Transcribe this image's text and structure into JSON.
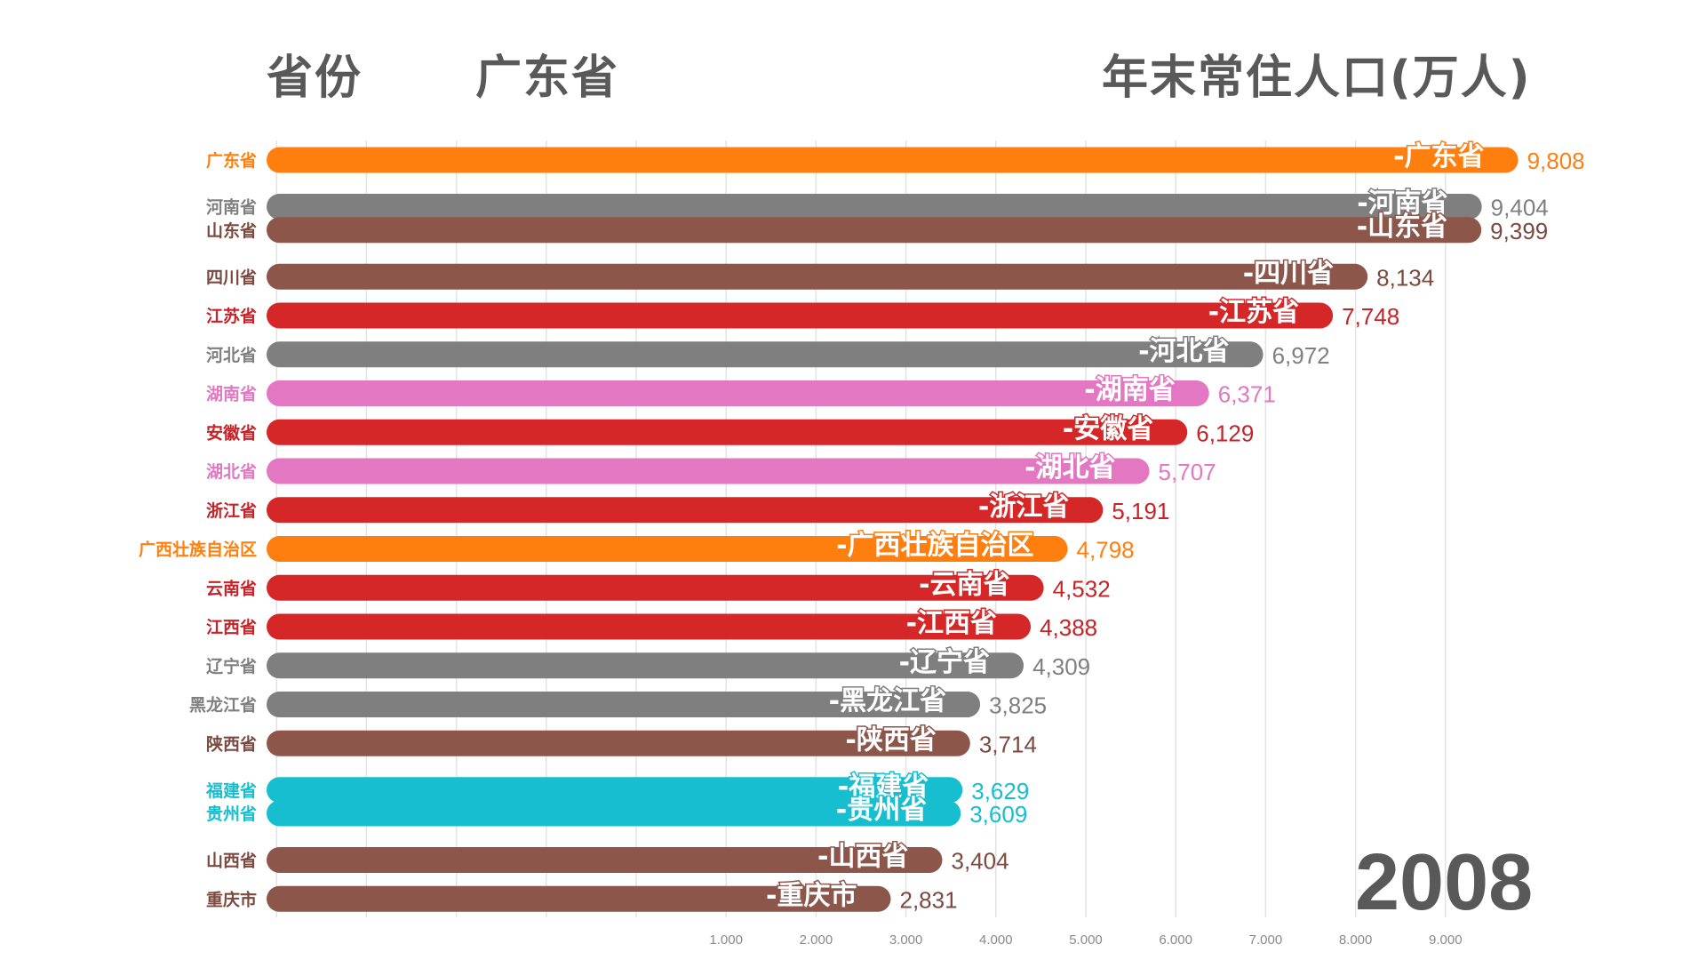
{
  "header": {
    "category_label": "省份",
    "leader_label": "广东省",
    "metric_label": "年末常住人口(万人)"
  },
  "year": "2008",
  "colors": {
    "orange": "#ff7f0e",
    "gray": "#7f7f7f",
    "brown": "#8c564b",
    "red": "#d62728",
    "pink": "#e377c2",
    "cyan": "#17becf",
    "title": "#595959",
    "grid": "#e3e3e3"
  },
  "chart_data": {
    "type": "bar",
    "orientation": "horizontal",
    "title": "年末常住人口(万人)",
    "xlabel": "",
    "ylabel": "省份",
    "year": "2008",
    "grid": true,
    "x_ticks": [
      1000,
      2000,
      3000,
      4000,
      5000,
      6000,
      7000,
      8000,
      9000
    ],
    "x_tick_labels": [
      "1.000",
      "2.000",
      "3.000",
      "4.000",
      "5.000",
      "6.000",
      "7.000",
      "8.000",
      "9.000"
    ],
    "x_grid_values": [
      -4000,
      -3000,
      -2000,
      -1000,
      0,
      1000,
      2000,
      3000,
      4000,
      5000,
      6000,
      7000,
      8000,
      9000
    ],
    "categories": [
      "广东省",
      "河南省",
      "山东省",
      "四川省",
      "江苏省",
      "河北省",
      "湖南省",
      "安徽省",
      "湖北省",
      "浙江省",
      "广西壮族自治区",
      "云南省",
      "江西省",
      "辽宁省",
      "黑龙江省",
      "陕西省",
      "福建省",
      "贵州省",
      "山西省",
      "重庆市"
    ],
    "values": [
      9808,
      9404,
      9399,
      8134,
      7748,
      6972,
      6371,
      6129,
      5707,
      5191,
      4798,
      4532,
      4388,
      4309,
      3825,
      3714,
      3629,
      3609,
      3404,
      2831
    ],
    "value_labels": [
      "9,808",
      "9,404",
      "9,399",
      "8,134",
      "7,748",
      "6,972",
      "6,371",
      "6,129",
      "5,707",
      "5,191",
      "4,798",
      "4,532",
      "4,388",
      "4,309",
      "3,825",
      "3,714",
      "3,629",
      "3,609",
      "3,404",
      "2,831"
    ],
    "bar_labels": [
      "-广东省",
      "-河南省",
      "-山东省",
      "-四川省",
      "-江苏省",
      "-河北省",
      "-湖南省",
      "-安徽省",
      "-湖北省",
      "-浙江省",
      "-广西壮族自治区",
      "-云南省",
      "-江西省",
      "-辽宁省",
      "-黑龙江省",
      "-陕西省",
      "-福建省",
      "-贵州省",
      "-山西省",
      "-重庆市"
    ],
    "bar_colors": [
      "#ff7f0e",
      "#7f7f7f",
      "#8c564b",
      "#8c564b",
      "#d62728",
      "#7f7f7f",
      "#e377c2",
      "#d62728",
      "#e377c2",
      "#d62728",
      "#ff7f0e",
      "#d62728",
      "#d62728",
      "#7f7f7f",
      "#7f7f7f",
      "#8c564b",
      "#17becf",
      "#17becf",
      "#8c564b",
      "#8c564b"
    ],
    "label_colors": [
      "#ff7f0e",
      "#7f7f7f",
      "#7a4a40",
      "#7a4a40",
      "#c62328",
      "#7f7f7f",
      "#e377c2",
      "#c62328",
      "#e377c2",
      "#c62328",
      "#ff7f0e",
      "#c62328",
      "#c62328",
      "#7f7f7f",
      "#7f7f7f",
      "#7a4a40",
      "#17becf",
      "#17becf",
      "#7a4a40",
      "#7a4a40"
    ],
    "rank_positions": [
      1,
      2.2,
      2.8,
      4,
      5,
      6,
      7,
      8,
      9,
      10,
      11,
      12,
      13,
      14,
      15,
      16,
      17.2,
      17.8,
      19,
      20
    ]
  }
}
